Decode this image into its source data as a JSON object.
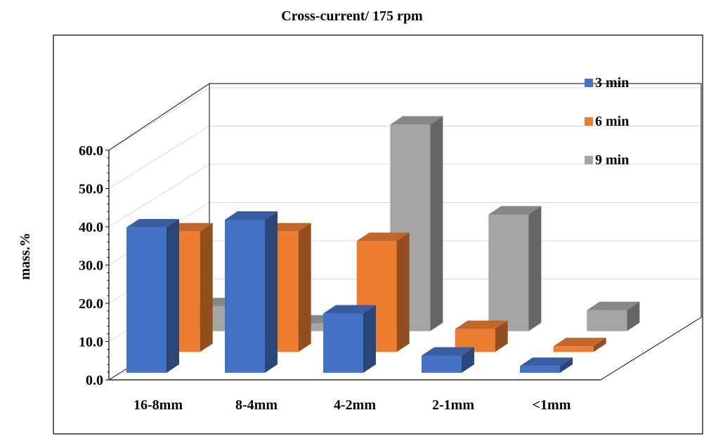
{
  "chart_data": {
    "type": "bar",
    "title": "Cross-current/ 175 rpm",
    "ylabel": "mass.%",
    "xlabel": "",
    "ylim": [
      0,
      60
    ],
    "yticks": [
      "0.0",
      "10.0",
      "20.0",
      "30.0",
      "40.0",
      "50.0",
      "60.0"
    ],
    "categories": [
      "16-8mm",
      "8-4mm",
      "4-2mm",
      "2-1mm",
      "<1mm"
    ],
    "series": [
      {
        "name": "3 min",
        "color": "#4472C4",
        "values": [
          38,
          40,
          15.5,
          4.5,
          1.8
        ]
      },
      {
        "name": "6 min",
        "color": "#ED7D31",
        "values": [
          31.5,
          31.5,
          29,
          6,
          1.5
        ]
      },
      {
        "name": "9 min",
        "color": "#A5A5A5",
        "values": [
          6.5,
          2,
          54,
          30.5,
          5.5
        ]
      }
    ],
    "legend_position": "top-right",
    "grid": true,
    "projection": "3d-clustered-depth"
  }
}
